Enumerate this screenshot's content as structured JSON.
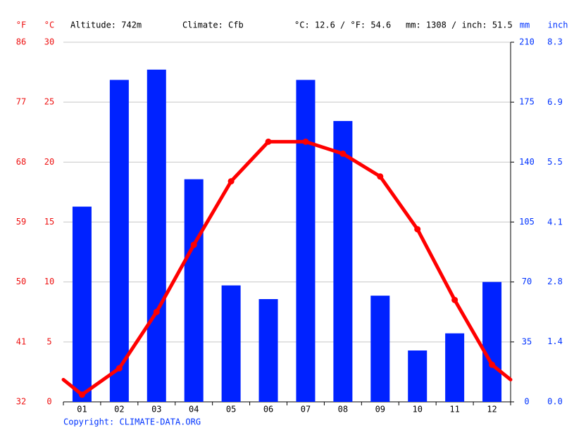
{
  "chart_data": {
    "type": "combo",
    "header": {
      "altitude": "Altitude: 742m",
      "climate": "Climate: Cfb",
      "temp_avg": "°C: 12.6 / °F: 54.6",
      "precip_total": "mm: 1308 / inch: 51.5"
    },
    "unit_f": "°F",
    "unit_c": "°C",
    "unit_mm": "mm",
    "unit_inch": "inch",
    "copyright": "Copyright: CLIMATE-DATA.ORG",
    "categories": [
      "01",
      "02",
      "03",
      "04",
      "05",
      "06",
      "07",
      "08",
      "09",
      "10",
      "11",
      "12"
    ],
    "series": [
      {
        "type": "bar",
        "axis": "y2",
        "color": "#0022ff",
        "values": [
          114,
          188,
          194,
          130,
          68,
          60,
          188,
          164,
          62,
          30,
          40,
          70
        ]
      },
      {
        "type": "line",
        "axis": "y",
        "color": "#ff0000",
        "values": [
          0.6,
          2.8,
          7.5,
          13.1,
          18.4,
          21.7,
          21.7,
          20.7,
          18.8,
          14.4,
          8.5,
          3.1
        ]
      }
    ],
    "ylim": [
      0,
      30
    ],
    "yticks": [
      0,
      5,
      10,
      15,
      20,
      25,
      30
    ],
    "flim": [
      32,
      86
    ],
    "fticks": [
      32,
      41,
      50,
      59,
      68,
      77,
      86
    ],
    "y2lim": [
      0,
      210
    ],
    "y2ticks": [
      0,
      35,
      70,
      105,
      140,
      175,
      210
    ],
    "inchlim": [
      0,
      8.27
    ],
    "inchticks": [
      {
        "value": 0,
        "label": "0.0"
      },
      {
        "value": 1.38,
        "label": "1.4"
      },
      {
        "value": 2.76,
        "label": "2.8"
      },
      {
        "value": 4.13,
        "label": "4.1"
      },
      {
        "value": 5.51,
        "label": "5.5"
      },
      {
        "value": 6.89,
        "label": "6.9"
      },
      {
        "value": 8.27,
        "label": "8.3"
      }
    ],
    "grid": true
  }
}
